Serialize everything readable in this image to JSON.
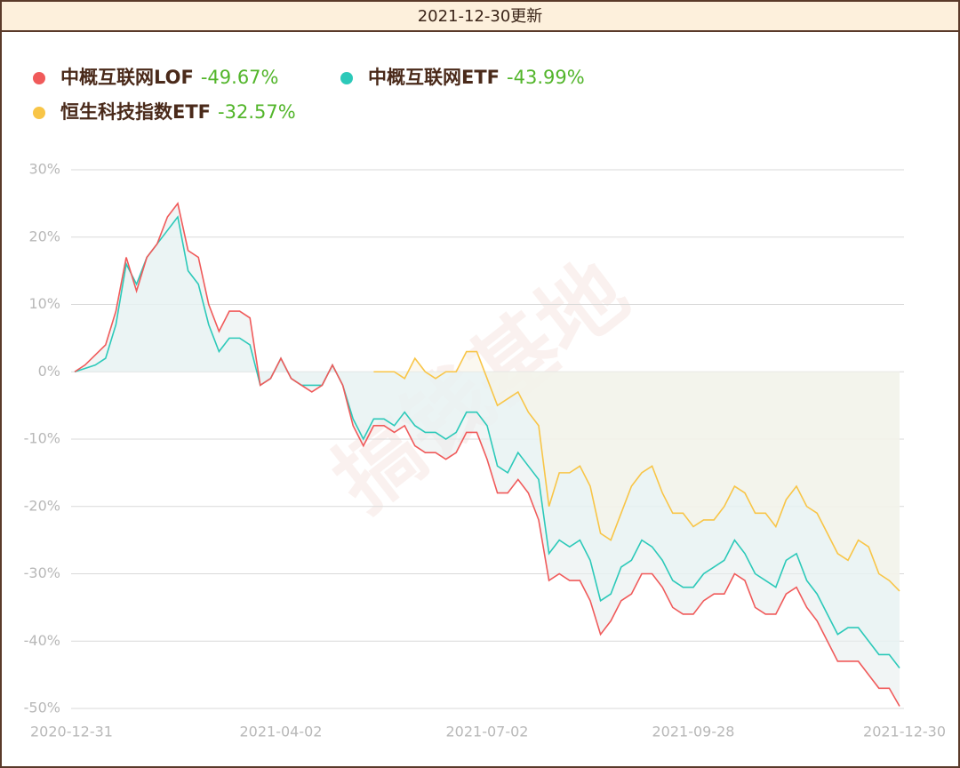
{
  "chart_data": {
    "type": "line",
    "header": "2021-12-30更新",
    "watermark": "搞钱基地",
    "categories": [
      "2020-12-31",
      null,
      null,
      null,
      null,
      null,
      null,
      null,
      null,
      null,
      null,
      null,
      null,
      null,
      null,
      null,
      null,
      null,
      null,
      null,
      "2021-04-02",
      null,
      null,
      null,
      null,
      null,
      null,
      null,
      null,
      null,
      null,
      null,
      null,
      null,
      null,
      null,
      null,
      null,
      null,
      null,
      "2021-07-02",
      null,
      null,
      null,
      null,
      null,
      null,
      null,
      null,
      null,
      null,
      null,
      null,
      null,
      null,
      null,
      null,
      null,
      null,
      null,
      "2021-09-28",
      null,
      null,
      null,
      null,
      null,
      null,
      null,
      null,
      null,
      null,
      null,
      null,
      null,
      null,
      null,
      null,
      null,
      null,
      null,
      "2021-12-30"
    ],
    "series": [
      {
        "name": "中概互联网LOF",
        "legend_value": "-49.67%",
        "color": "#f05a5a",
        "fill": "#e8eeee",
        "values": [
          0,
          1,
          2.5,
          4,
          9,
          17,
          12,
          17,
          19,
          23,
          25,
          18,
          17,
          10,
          6,
          9,
          9,
          8,
          -2,
          -1,
          2,
          -1,
          -2,
          -3,
          -2,
          1,
          -2,
          -8,
          -11,
          -8,
          -8,
          -9,
          -8,
          -11,
          -12,
          -12,
          -13,
          -12,
          -9,
          -9,
          -13,
          -18,
          -18,
          -16,
          -18,
          -22,
          -31,
          -30,
          -31,
          -31,
          -34,
          -39,
          -37,
          -34,
          -33,
          -30,
          -30,
          -32,
          -35,
          -36,
          -36,
          -34,
          -33,
          -33,
          -30,
          -31,
          -35,
          -36,
          -36,
          -33,
          -32,
          -35,
          -37,
          -40,
          -43,
          -43,
          -43,
          -45,
          -47,
          -47,
          -49.67
        ]
      },
      {
        "name": "中概互联网ETF",
        "legend_value": "-43.99%",
        "color": "#2cc9b9",
        "fill": "#e8f3f3",
        "values": [
          0,
          0.5,
          1,
          2,
          7,
          16,
          13,
          17,
          19,
          21,
          23,
          15,
          13,
          7,
          3,
          5,
          5,
          4,
          -2,
          -1,
          2,
          -1,
          -2,
          -2,
          -2,
          1,
          -2,
          -7,
          -10,
          -7,
          -7,
          -8,
          -6,
          -8,
          -9,
          -9,
          -10,
          -9,
          -6,
          -6,
          -8,
          -14,
          -15,
          -12,
          -14,
          -16,
          -27,
          -25,
          -26,
          -25,
          -28,
          -34,
          -33,
          -29,
          -28,
          -25,
          -26,
          -28,
          -31,
          -32,
          -32,
          -30,
          -29,
          -28,
          -25,
          -27,
          -30,
          -31,
          -32,
          -28,
          -27,
          -31,
          -33,
          -36,
          -39,
          -38,
          -38,
          -40,
          -42,
          -42,
          -43.99
        ]
      },
      {
        "name": "恒生科技指数ETF",
        "legend_value": "-32.57%",
        "color": "#f8c547",
        "fill": "#f8f4e6",
        "values": [
          null,
          null,
          null,
          null,
          null,
          null,
          null,
          null,
          null,
          null,
          null,
          null,
          null,
          null,
          null,
          null,
          null,
          null,
          null,
          null,
          null,
          null,
          null,
          null,
          null,
          null,
          null,
          null,
          null,
          0,
          0,
          0,
          -1,
          2,
          0,
          -1,
          0,
          0,
          3,
          3,
          -1,
          -5,
          -4,
          -3,
          -6,
          -8,
          -20,
          -15,
          -15,
          -14,
          -17,
          -24,
          -25,
          -21,
          -17,
          -15,
          -14,
          -18,
          -21,
          -21,
          -23,
          -22,
          -22,
          -20,
          -17,
          -18,
          -21,
          -21,
          -23,
          -19,
          -17,
          -20,
          -21,
          -24,
          -27,
          -28,
          -25,
          -26,
          -30,
          -31,
          -32.57
        ]
      }
    ],
    "ylim": [
      -50,
      30
    ],
    "yticks": [
      {
        "value": -50,
        "label": "-50%"
      },
      {
        "value": -40,
        "label": "-40%"
      },
      {
        "value": -30,
        "label": "-30%"
      },
      {
        "value": -20,
        "label": "-20%"
      },
      {
        "value": -10,
        "label": "-10%"
      },
      {
        "value": 0,
        "label": "0%"
      },
      {
        "value": 10,
        "label": "10%"
      },
      {
        "value": 20,
        "label": "20%"
      },
      {
        "value": 30,
        "label": "30%"
      }
    ],
    "grid": true
  }
}
